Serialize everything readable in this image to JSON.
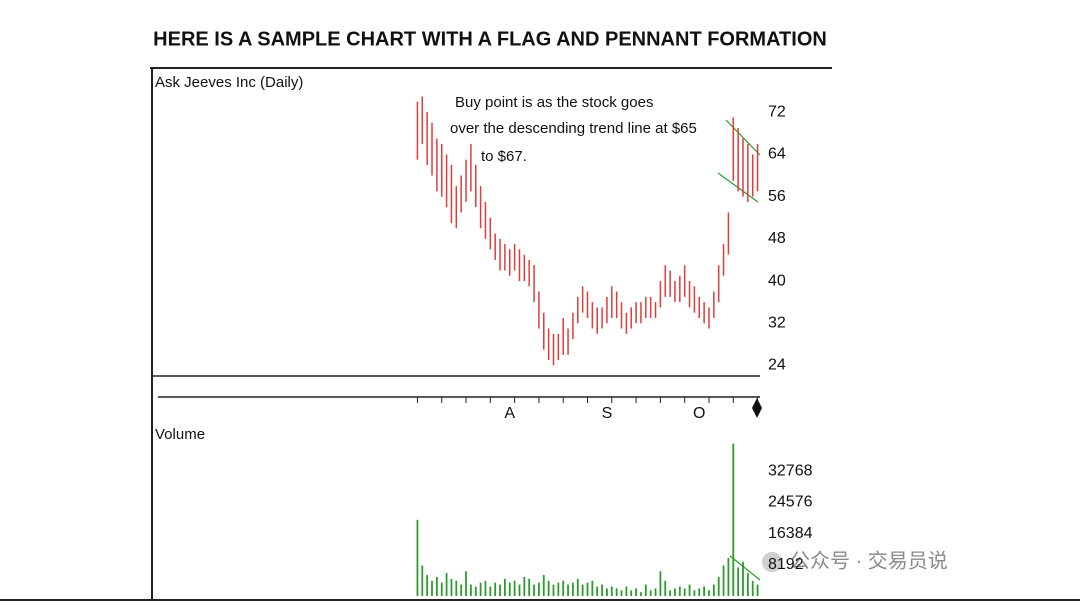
{
  "title": "HERE IS A SAMPLE CHART WITH A FLAG AND PENNANT FORMATION",
  "watermark": "公众号 · 交易员说",
  "chart_data": [
    {
      "type": "hl-bar",
      "title": "Ask Jeeves Inc (Daily)",
      "annotation": [
        "Buy point is as the stock goes",
        "over the descending trend line at $65",
        "to $67."
      ],
      "categories": [
        null,
        null,
        null,
        null,
        null,
        null,
        null,
        null,
        null,
        null,
        null,
        null,
        null,
        null,
        null,
        null,
        null,
        null,
        null,
        "A",
        null,
        null,
        null,
        null,
        null,
        null,
        null,
        null,
        null,
        null,
        null,
        null,
        null,
        null,
        null,
        null,
        null,
        null,
        null,
        "S",
        null,
        null,
        null,
        null,
        null,
        null,
        null,
        null,
        null,
        null,
        null,
        null,
        null,
        null,
        null,
        null,
        null,
        null,
        "O",
        null,
        null,
        null,
        null,
        null,
        null,
        null,
        null,
        null,
        null,
        null,
        null
      ],
      "high": [
        74,
        75,
        72,
        70,
        67,
        66,
        64,
        62,
        58,
        60,
        63,
        66,
        62,
        58,
        55,
        52,
        49,
        48,
        47,
        46,
        47,
        46,
        45,
        44,
        43,
        38,
        34,
        31,
        30,
        30,
        33,
        31,
        34,
        37,
        39,
        38,
        36,
        35,
        35,
        37,
        39,
        38,
        36,
        34,
        35,
        36,
        36,
        37,
        37,
        36,
        40,
        43,
        42,
        40,
        41,
        43,
        40,
        39,
        37,
        36,
        35,
        38,
        43,
        47,
        53,
        71,
        69,
        67,
        66,
        64,
        66
      ],
      "low": [
        63,
        66,
        62,
        60,
        57,
        56,
        54,
        51,
        50,
        53,
        55,
        57,
        54,
        50,
        48,
        46,
        44,
        42,
        42,
        41,
        42,
        40,
        40,
        39,
        36,
        31,
        27,
        25,
        24,
        25,
        26,
        26,
        29,
        32,
        34,
        33,
        31,
        30,
        31,
        32,
        33,
        33,
        31,
        30,
        31,
        32,
        32,
        33,
        33,
        33,
        35,
        37,
        37,
        36,
        36,
        37,
        35,
        34,
        33,
        32,
        31,
        33,
        36,
        41,
        45,
        59,
        57,
        56,
        55,
        56,
        57
      ],
      "color": "#e03c3c",
      "ylim": [
        22,
        80
      ],
      "yticks": [
        24,
        32,
        40,
        48,
        56,
        64,
        72
      ]
    },
    {
      "type": "bar",
      "title": "Volume",
      "values": [
        20000,
        8000,
        5500,
        4000,
        5000,
        3500,
        6000,
        4500,
        4000,
        3000,
        6500,
        3000,
        2500,
        3500,
        4000,
        2500,
        3500,
        3000,
        4500,
        3500,
        4000,
        3000,
        5000,
        4500,
        3000,
        3500,
        5500,
        4000,
        3000,
        3500,
        4000,
        3000,
        3500,
        4500,
        3000,
        3500,
        4000,
        2500,
        3000,
        2000,
        2500,
        2000,
        1500,
        2500,
        1500,
        2000,
        1000,
        3000,
        1500,
        2000,
        6500,
        4000,
        1500,
        2000,
        2500,
        2000,
        3000,
        1500,
        2000,
        2500,
        1500,
        3000,
        5000,
        8000,
        10000,
        40000,
        7500,
        9000,
        6000,
        4000,
        3000
      ],
      "color": "#2e9a2e",
      "ylim": [
        0,
        40960
      ],
      "yticks": [
        8192,
        16384,
        24576,
        32768
      ]
    }
  ]
}
